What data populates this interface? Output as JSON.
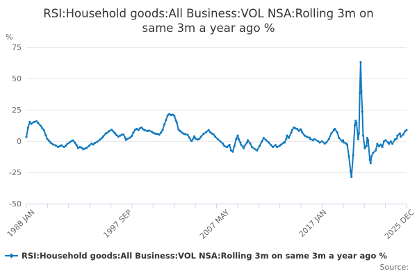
{
  "title": {
    "line1": "RSI:Household goods:All Business:VOL NSA:Rolling 3m on",
    "line2": "same 3m a year ago %"
  },
  "y_axis": {
    "unit_label": "%",
    "ticks": [
      75,
      50,
      25,
      0,
      -25,
      -50
    ]
  },
  "x_axis": {
    "labels": [
      {
        "text": "1988 JAN",
        "pos": 0
      },
      {
        "text": "1997 SEP",
        "pos": 0.256
      },
      {
        "text": "2007 MAY",
        "pos": 0.512
      },
      {
        "text": "2017 JAN",
        "pos": 0.768
      },
      {
        "text": "2025 DEC",
        "pos": 1
      }
    ],
    "minor_tick_intervals": 18
  },
  "legend": {
    "label": "RSI:Household goods:All Business:VOL NSA:Rolling 3m on same 3m a year ago %"
  },
  "source": {
    "label": "Source:"
  },
  "colors": {
    "line": "#1178be",
    "grid": "#e6e6e6",
    "axis": "#c9d4e8",
    "text": "#666666",
    "title": "#333333"
  },
  "chart_data": {
    "type": "line",
    "title": "RSI:Household goods:All Business:VOL NSA:Rolling 3m on same 3m a year ago %",
    "xlabel": "",
    "ylabel": "%",
    "x_unit": "months since 1988 JAN (monthly series, ends 2025 DEC)",
    "x_range_labels": [
      "1988 JAN",
      "1997 SEP",
      "2007 MAY",
      "2017 JAN",
      "2025 DEC"
    ],
    "months_total": 455,
    "ylim": [
      -50,
      75
    ],
    "y_ticks": [
      75,
      50,
      25,
      0,
      -25,
      -50
    ],
    "grid": true,
    "legend_position": "bottom-left",
    "series": [
      {
        "name": "RSI:Household goods:All Business:VOL NSA:Rolling 3m on same 3m a year ago %",
        "color": "#1178be",
        "marker": "point",
        "points": [
          [
            0,
            3.5
          ],
          [
            2,
            11
          ],
          [
            4,
            15.6
          ],
          [
            6,
            14
          ],
          [
            9,
            15.5
          ],
          [
            12,
            16
          ],
          [
            14,
            14.7
          ],
          [
            17,
            12.5
          ],
          [
            19,
            10.5
          ],
          [
            21,
            9
          ],
          [
            23,
            5
          ],
          [
            25,
            1.8
          ],
          [
            27,
            0.5
          ],
          [
            29,
            -1
          ],
          [
            32,
            -2.5
          ],
          [
            35,
            -3.2
          ],
          [
            38,
            -4.5
          ],
          [
            40,
            -3.8
          ],
          [
            42,
            -3.2
          ],
          [
            45,
            -4.5
          ],
          [
            47,
            -3.5
          ],
          [
            49,
            -2
          ],
          [
            52,
            -0.8
          ],
          [
            54,
            0.2
          ],
          [
            56,
            0.8
          ],
          [
            58,
            -1
          ],
          [
            60,
            -3
          ],
          [
            62,
            -5.3
          ],
          [
            64,
            -4.6
          ],
          [
            66,
            -5
          ],
          [
            68,
            -6.3
          ],
          [
            70,
            -5.8
          ],
          [
            72,
            -5.2
          ],
          [
            75,
            -3.5
          ],
          [
            78,
            -1.8
          ],
          [
            80,
            -2.5
          ],
          [
            82,
            -1.2
          ],
          [
            85,
            -0.2
          ],
          [
            88,
            1.4
          ],
          [
            90,
            2.5
          ],
          [
            92,
            4
          ],
          [
            95,
            6.3
          ],
          [
            97,
            7
          ],
          [
            99,
            8.2
          ],
          [
            102,
            9.3
          ],
          [
            104,
            8
          ],
          [
            106,
            6.5
          ],
          [
            108,
            5
          ],
          [
            110,
            3.8
          ],
          [
            112,
            4.5
          ],
          [
            114,
            5.2
          ],
          [
            116,
            5.5
          ],
          [
            118,
            3
          ],
          [
            119,
            1.2
          ],
          [
            121,
            2
          ],
          [
            124,
            3
          ],
          [
            126,
            4.2
          ],
          [
            128,
            7
          ],
          [
            130,
            9.2
          ],
          [
            132,
            10
          ],
          [
            134,
            9
          ],
          [
            136,
            10.5
          ],
          [
            138,
            11
          ],
          [
            140,
            9.5
          ],
          [
            142,
            8.8
          ],
          [
            145,
            8.3
          ],
          [
            147,
            8.6
          ],
          [
            150,
            7.8
          ],
          [
            152,
            6.8
          ],
          [
            154,
            6.2
          ],
          [
            156,
            6
          ],
          [
            158,
            5.6
          ],
          [
            159,
            5.4
          ],
          [
            161,
            7
          ],
          [
            163,
            9
          ],
          [
            165,
            13.5
          ],
          [
            167,
            17
          ],
          [
            169,
            20.7
          ],
          [
            171,
            21.8
          ],
          [
            173,
            21
          ],
          [
            175,
            21.4
          ],
          [
            177,
            20.5
          ],
          [
            179,
            16.5
          ],
          [
            180,
            15
          ],
          [
            182,
            9.5
          ],
          [
            184,
            8.2
          ],
          [
            186,
            7
          ],
          [
            188,
            6.2
          ],
          [
            190,
            5.8
          ],
          [
            193,
            5.2
          ],
          [
            195,
            3
          ],
          [
            197,
            0.8
          ],
          [
            198,
            0.4
          ],
          [
            200,
            2.5
          ],
          [
            201,
            4
          ],
          [
            203,
            2
          ],
          [
            205,
            1.5
          ],
          [
            207,
            2
          ],
          [
            209,
            3.7
          ],
          [
            212,
            6
          ],
          [
            215,
            7.3
          ],
          [
            218,
            9
          ],
          [
            220,
            7.3
          ],
          [
            222,
            6.3
          ],
          [
            224,
            5.5
          ],
          [
            226,
            3.7
          ],
          [
            229,
            1.8
          ],
          [
            232,
            0
          ],
          [
            235,
            -1.8
          ],
          [
            237,
            -3.7
          ],
          [
            240,
            -4.6
          ],
          [
            243,
            -2.7
          ],
          [
            245,
            -7.3
          ],
          [
            247,
            -8.2
          ],
          [
            249,
            -3.7
          ],
          [
            251,
            1.8
          ],
          [
            253,
            4.6
          ],
          [
            254,
            1.8
          ],
          [
            256,
            -0.9
          ],
          [
            257,
            -2.7
          ],
          [
            260,
            -5.5
          ],
          [
            261,
            -3.7
          ],
          [
            264,
            -0.9
          ],
          [
            265,
            0.9
          ],
          [
            268,
            -1.8
          ],
          [
            270,
            -4.6
          ],
          [
            274,
            -6.4
          ],
          [
            276,
            -7.3
          ],
          [
            279,
            -3.7
          ],
          [
            282,
            0
          ],
          [
            284,
            2.7
          ],
          [
            287,
            0.9
          ],
          [
            290,
            -0.9
          ],
          [
            293,
            -3
          ],
          [
            295,
            -4.5
          ],
          [
            298,
            -3
          ],
          [
            300,
            -4.5
          ],
          [
            303,
            -3.5
          ],
          [
            305,
            -2.5
          ],
          [
            308,
            -1
          ],
          [
            309,
            -0.9
          ],
          [
            311,
            2
          ],
          [
            312,
            4.6
          ],
          [
            314,
            2.9
          ],
          [
            317,
            7
          ],
          [
            318,
            9
          ],
          [
            320,
            11
          ],
          [
            322,
            10.4
          ],
          [
            324,
            10
          ],
          [
            326,
            8.4
          ],
          [
            328,
            9.6
          ],
          [
            329,
            9
          ],
          [
            330,
            7.3
          ],
          [
            333,
            4.6
          ],
          [
            336,
            3.5
          ],
          [
            339,
            2.9
          ],
          [
            340,
            1.8
          ],
          [
            343,
            0.9
          ],
          [
            345,
            1.8
          ],
          [
            349,
            0.2
          ],
          [
            351,
            -0.9
          ],
          [
            354,
            0
          ],
          [
            357,
            -1.8
          ],
          [
            359,
            -0.9
          ],
          [
            362,
            1.8
          ],
          [
            365,
            6.4
          ],
          [
            368,
            9
          ],
          [
            369,
            10
          ],
          [
            372,
            7.3
          ],
          [
            374,
            2.9
          ],
          [
            378,
            0
          ],
          [
            379,
            0.9
          ],
          [
            380,
            -0.9
          ],
          [
            383,
            -1.8
          ],
          [
            384,
            -2.7
          ],
          [
            386,
            -12
          ],
          [
            388,
            -24
          ],
          [
            389,
            -28.4
          ],
          [
            391,
            -11
          ],
          [
            393,
            12.8
          ],
          [
            394,
            16.5
          ],
          [
            395,
            14.7
          ],
          [
            397,
            1.8
          ],
          [
            398,
            6.4
          ],
          [
            399,
            38.5
          ],
          [
            400,
            63.2
          ],
          [
            401,
            40
          ],
          [
            402,
            23.8
          ],
          [
            403,
            4.6
          ],
          [
            405,
            -5.5
          ],
          [
            407,
            -3.7
          ],
          [
            408,
            2.8
          ],
          [
            409,
            0.9
          ],
          [
            411,
            -14.7
          ],
          [
            412,
            -17.4
          ],
          [
            413,
            -12
          ],
          [
            415,
            -9.2
          ],
          [
            418,
            -7.3
          ],
          [
            420,
            -2
          ],
          [
            422,
            -4
          ],
          [
            424,
            -2.6
          ],
          [
            426,
            -4.5
          ],
          [
            428,
            0
          ],
          [
            430,
            0.9
          ],
          [
            433,
            -1
          ],
          [
            434,
            -2
          ],
          [
            436,
            0
          ],
          [
            438,
            -2
          ],
          [
            441,
            1.5
          ],
          [
            443,
            2
          ],
          [
            444,
            4.5
          ],
          [
            447,
            6.4
          ],
          [
            448,
            3.7
          ],
          [
            451,
            5.5
          ],
          [
            453,
            8
          ],
          [
            455,
            9
          ]
        ]
      }
    ]
  }
}
